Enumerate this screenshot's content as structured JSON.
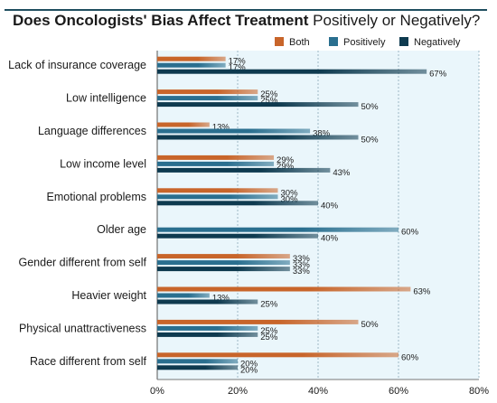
{
  "header": {
    "title_bold": "Does Oncologists' Bias Affect Treatment",
    "title_normal": "Positively or Negatively?"
  },
  "colors": {
    "both": "#c8652a",
    "positively": "#2a6f8f",
    "negatively": "#0e3a4f",
    "plot_background": "#eaf6fb",
    "grid": "#9fb8c4"
  },
  "chart_data": {
    "type": "bar",
    "orientation": "horizontal",
    "title": "Does Oncologists' Bias Affect Treatment Positively or Negatively?",
    "categories": [
      "Lack of insurance coverage",
      "Low intelligence",
      "Language differences",
      "Low income level",
      "Emotional problems",
      "Older age",
      "Gender different from self",
      "Heavier weight",
      "Physical unattractiveness",
      "Race different from self"
    ],
    "series": [
      {
        "name": "Both",
        "color": "#c8652a",
        "values": [
          17,
          25,
          13,
          29,
          30,
          null,
          33,
          63,
          50,
          60
        ]
      },
      {
        "name": "Positively",
        "color": "#2a6f8f",
        "values": [
          17,
          25,
          38,
          29,
          30,
          60,
          33,
          13,
          25,
          20
        ]
      },
      {
        "name": "Negatively",
        "color": "#0e3a4f",
        "values": [
          67,
          50,
          50,
          43,
          40,
          40,
          33,
          25,
          25,
          20
        ]
      }
    ],
    "xlim": [
      0,
      80
    ],
    "x_ticks": [
      0,
      20,
      40,
      60,
      80
    ],
    "value_suffix": "%",
    "legend_position": "top-right",
    "grid": true
  }
}
